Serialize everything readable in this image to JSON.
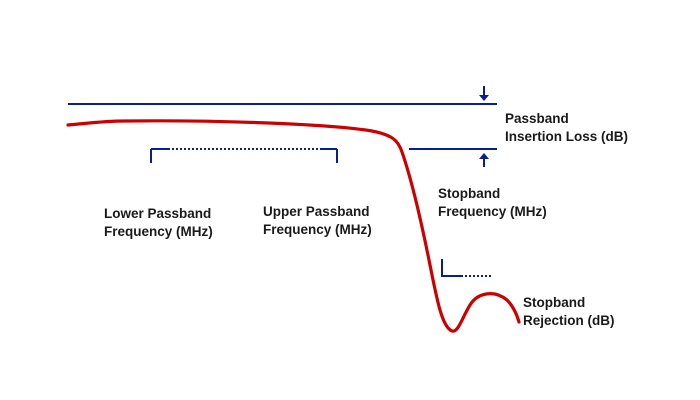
{
  "colors": {
    "response_curve": "#cc0000",
    "marker_lines": "#0a1f8f",
    "text": "#1a1a1a",
    "background": "#ffffff"
  },
  "icons": {
    "arrow_down": "arrow-down-icon",
    "arrow_up": "arrow-up-icon"
  },
  "labels": {
    "passband_insertion_loss": [
      "Passband",
      "Insertion Loss (dB)"
    ],
    "stopband_frequency": [
      "Stopband",
      "Frequency (MHz)"
    ],
    "lower_passband_frequency": [
      "Lower Passband",
      "Frequency (MHz)"
    ],
    "upper_passband_frequency": [
      "Upper Passband",
      "Frequency (MHz)"
    ],
    "stopband_rejection": [
      "Stopband",
      "Rejection (dB)"
    ]
  }
}
